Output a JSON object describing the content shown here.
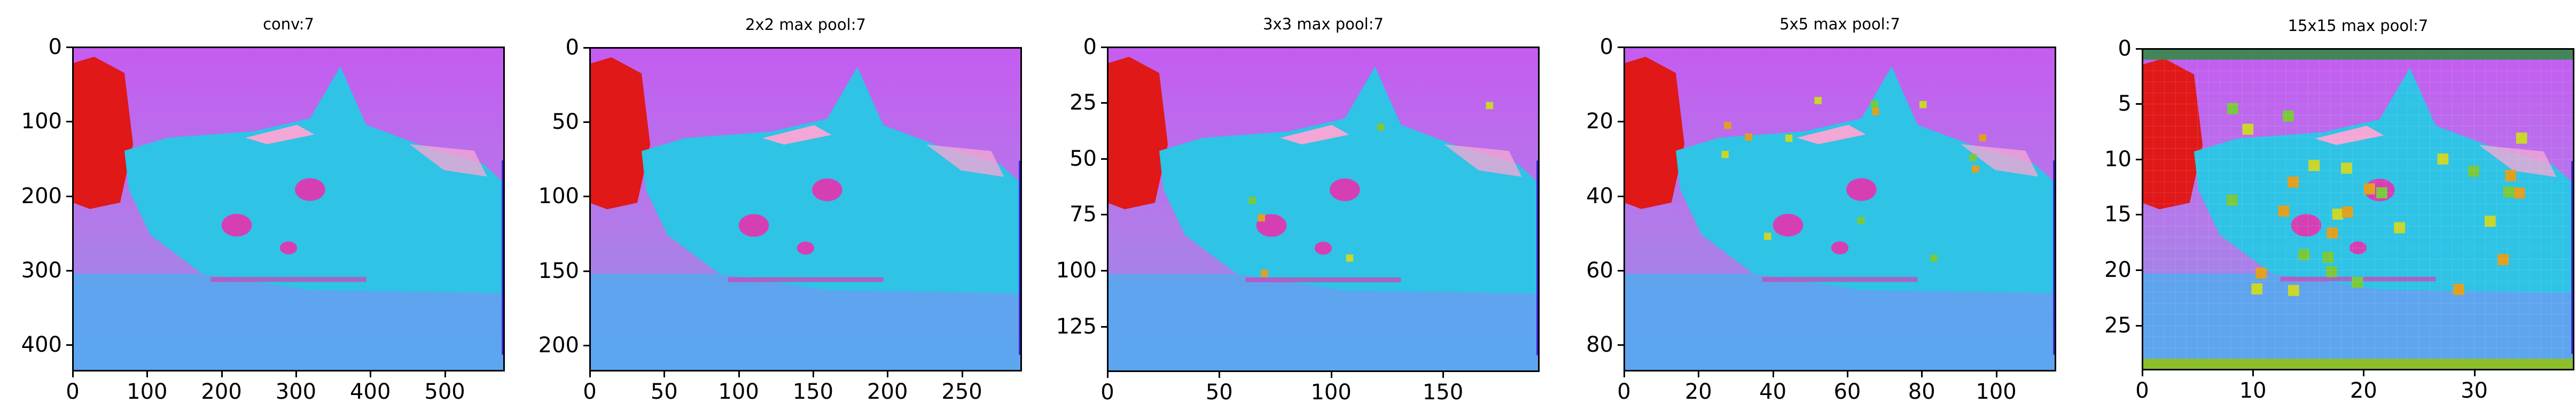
{
  "figure": {
    "colors": {
      "background_magenta": "#c45cf0",
      "red_patch": "#e01818",
      "cat_cyan": "#2fc3e6",
      "pink_highlight": "#f3a7d6",
      "eye_magenta": "#d63fb4",
      "floor_blue": "#54a9f0",
      "yellow_green": "#c9d62a"
    },
    "panels": [
      {
        "title": "conv:7",
        "x_ticks": [
          "0",
          "100",
          "200",
          "300",
          "400",
          "500"
        ],
        "y_ticks": [
          "0",
          "100",
          "200",
          "300",
          "400"
        ],
        "x_tick_values": [
          0,
          100,
          200,
          300,
          400,
          500
        ],
        "y_tick_values": [
          0,
          100,
          200,
          300,
          400
        ],
        "width_units": 580,
        "height_units": 435
      },
      {
        "title": "2x2 max pool:7",
        "x_ticks": [
          "0",
          "50",
          "100",
          "150",
          "200",
          "250"
        ],
        "y_ticks": [
          "0",
          "50",
          "100",
          "150",
          "200"
        ],
        "x_tick_values": [
          0,
          50,
          100,
          150,
          200,
          250
        ],
        "y_tick_values": [
          0,
          50,
          100,
          150,
          200
        ],
        "width_units": 290,
        "height_units": 217
      },
      {
        "title": "3x3 max pool:7",
        "x_ticks": [
          "0",
          "50",
          "100",
          "150"
        ],
        "y_ticks": [
          "0",
          "25",
          "50",
          "75",
          "100",
          "125"
        ],
        "x_tick_values": [
          0,
          50,
          100,
          150
        ],
        "y_tick_values": [
          0,
          25,
          50,
          75,
          100,
          125
        ],
        "width_units": 193,
        "height_units": 145
      },
      {
        "title": "5x5 max pool:7",
        "x_ticks": [
          "0",
          "20",
          "40",
          "60",
          "80",
          "100"
        ],
        "y_ticks": [
          "0",
          "20",
          "40",
          "60",
          "80"
        ],
        "x_tick_values": [
          0,
          20,
          40,
          60,
          80,
          100
        ],
        "y_tick_values": [
          0,
          20,
          40,
          60,
          80
        ],
        "width_units": 116,
        "height_units": 87
      },
      {
        "title": "15x15 max pool:7",
        "x_ticks": [
          "0",
          "10",
          "20",
          "30"
        ],
        "y_ticks": [
          "0",
          "5",
          "10",
          "15",
          "20",
          "25"
        ],
        "x_tick_values": [
          0,
          10,
          20,
          30
        ],
        "y_tick_values": [
          0,
          5,
          10,
          15,
          20,
          25
        ],
        "width_units": 39,
        "height_units": 29
      }
    ]
  }
}
